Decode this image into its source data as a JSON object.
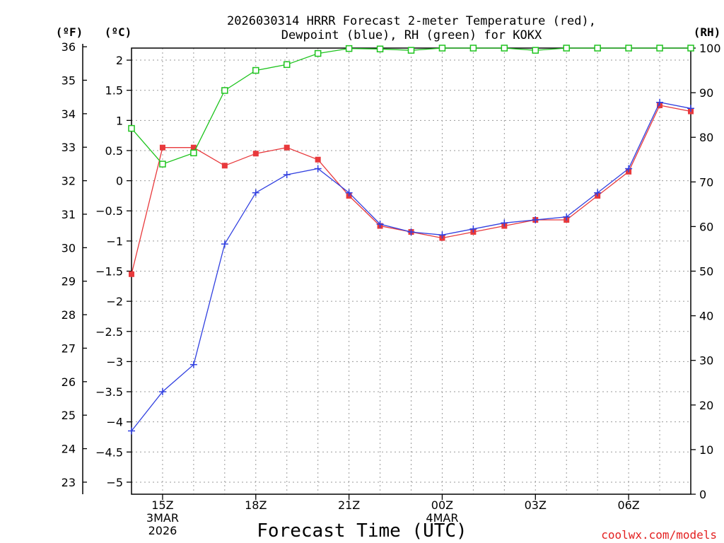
{
  "title": {
    "line1": "2026030314 HRRR Forecast 2-meter Temperature (red),",
    "line2": "Dewpoint (blue), RH (green) for KOKX"
  },
  "axis_units": {
    "fahrenheit": "(ºF)",
    "celsius": "(ºC)",
    "rh": "(RH)"
  },
  "xlabel": "Forecast Time (UTC)",
  "credit": "coolwx.com/models",
  "colors": {
    "temperature": "#e8393c",
    "dewpoint": "#3140e0",
    "rh": "#1ec41e",
    "credit": "#e32020"
  },
  "chart_data": {
    "type": "line",
    "x_unit": "hour (UTC), 2026-03-03 14Z to 2026-03-04 08Z",
    "x": [
      14,
      15,
      16,
      17,
      18,
      19,
      20,
      21,
      22,
      23,
      24,
      25,
      26,
      27,
      28,
      29,
      30,
      31,
      32
    ],
    "xlim": [
      14,
      32
    ],
    "x_ticks": [
      {
        "x": 15,
        "lines": [
          "15Z",
          "3MAR",
          "2026"
        ]
      },
      {
        "x": 18,
        "lines": [
          "18Z"
        ]
      },
      {
        "x": 21,
        "lines": [
          "21Z"
        ]
      },
      {
        "x": 24,
        "lines": [
          "00Z",
          "4MAR"
        ]
      },
      {
        "x": 27,
        "lines": [
          "03Z"
        ]
      },
      {
        "x": 30,
        "lines": [
          "06Z"
        ]
      }
    ],
    "y_celsius": {
      "lim": [
        -5.2,
        2.2
      ],
      "ticks": [
        "2",
        "1.5",
        "1",
        "0.5",
        "0",
        "-0.5",
        "-1",
        "-1.5",
        "-2",
        "-2.5",
        "-3",
        "-3.5",
        "-4",
        "-4.5",
        "-5"
      ]
    },
    "y_fahrenheit": {
      "lim": [
        22.64,
        35.96
      ],
      "ticks": [
        "36",
        "35",
        "34",
        "33",
        "32",
        "31",
        "30",
        "29",
        "28",
        "27",
        "26",
        "25",
        "24",
        "23"
      ]
    },
    "y_rh": {
      "lim": [
        0,
        100
      ],
      "ticks": [
        "100",
        "90",
        "80",
        "70",
        "60",
        "50",
        "40",
        "30",
        "20",
        "10",
        "0"
      ]
    },
    "series": [
      {
        "key": "temperature",
        "axis": "celsius",
        "marker": "filled-square",
        "values": [
          -1.55,
          0.55,
          0.55,
          0.25,
          0.45,
          0.55,
          0.35,
          -0.25,
          -0.75,
          -0.85,
          -0.95,
          -0.85,
          -0.75,
          -0.65,
          -0.65,
          -0.25,
          0.15,
          1.25,
          1.15
        ]
      },
      {
        "key": "dewpoint",
        "axis": "celsius",
        "marker": "plus",
        "values": [
          -4.15,
          -3.5,
          -3.05,
          -1.05,
          -0.2,
          0.1,
          0.2,
          -0.2,
          -0.72,
          -0.85,
          -0.9,
          -0.8,
          -0.7,
          -0.65,
          -0.6,
          -0.2,
          0.2,
          1.3,
          1.2
        ]
      },
      {
        "key": "rh",
        "axis": "rh",
        "marker": "open-square",
        "values": [
          82,
          74,
          76.5,
          90.5,
          95,
          96.3,
          98.8,
          99.9,
          99.8,
          99.5,
          100,
          100,
          100,
          99.5,
          100,
          100,
          100,
          100,
          100
        ]
      }
    ]
  }
}
